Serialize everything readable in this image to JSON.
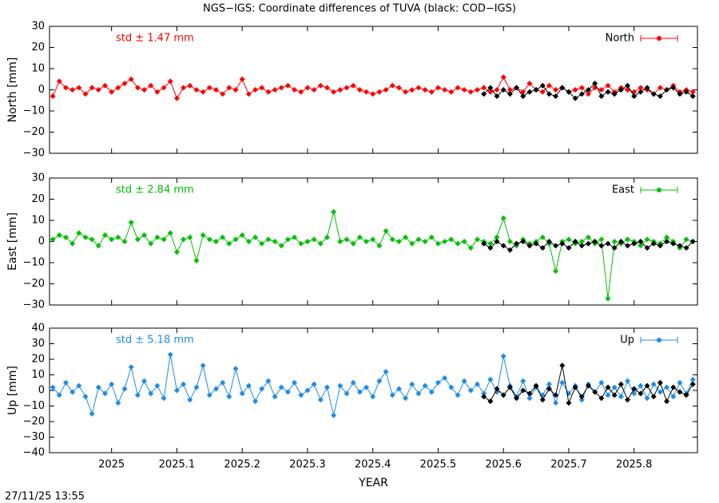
{
  "title": "NGS−IGS: Coordinate differences of TUVA (black: COD−IGS)",
  "timestamp": "27/11/25 13:55",
  "chart_data": [
    {
      "type": "line",
      "ylabel": "North [mm]",
      "annotation": "std ± 1.47 mm",
      "xlim": [
        2024.905,
        2025.897
      ],
      "ylim": [
        -30,
        30
      ],
      "yticks": [
        {
          "value": -30,
          "label": "−30"
        },
        {
          "value": -20,
          "label": "−20"
        },
        {
          "value": -10,
          "label": "−10"
        },
        0,
        10,
        20,
        30
      ],
      "legend": "top-right",
      "series": [
        {
          "name": "North",
          "color": "#ff0000",
          "x": [
            2024.91,
            2024.92,
            2024.93,
            2024.94,
            2024.95,
            2024.96,
            2024.97,
            2024.98,
            2024.99,
            2025,
            2025.01,
            2025.02,
            2025.03,
            2025.04,
            2025.05,
            2025.06,
            2025.07,
            2025.08,
            2025.09,
            2025.1,
            2025.11,
            2025.12,
            2025.13,
            2025.14,
            2025.15,
            2025.16,
            2025.17,
            2025.18,
            2025.19,
            2025.2,
            2025.21,
            2025.22,
            2025.23,
            2025.24,
            2025.25,
            2025.26,
            2025.27,
            2025.28,
            2025.29,
            2025.3,
            2025.31,
            2025.32,
            2025.33,
            2025.34,
            2025.35,
            2025.36,
            2025.37,
            2025.38,
            2025.39,
            2025.4,
            2025.41,
            2025.42,
            2025.43,
            2025.44,
            2025.45,
            2025.46,
            2025.47,
            2025.48,
            2025.49,
            2025.5,
            2025.51,
            2025.52,
            2025.53,
            2025.54,
            2025.55,
            2025.56,
            2025.57,
            2025.58,
            2025.59,
            2025.6,
            2025.61,
            2025.62,
            2025.63,
            2025.64,
            2025.65,
            2025.66,
            2025.67,
            2025.68,
            2025.69,
            2025.7,
            2025.71,
            2025.72,
            2025.73,
            2025.74,
            2025.75,
            2025.76,
            2025.77,
            2025.78,
            2025.79,
            2025.8,
            2025.81,
            2025.82,
            2025.83,
            2025.84,
            2025.85,
            2025.86,
            2025.87,
            2025.88,
            2025.89
          ],
          "values": [
            -3,
            4,
            1,
            0,
            1,
            -2,
            1,
            0,
            2,
            -1,
            1,
            3,
            5,
            1,
            0,
            2,
            -1,
            1,
            4,
            -4,
            1,
            2,
            0,
            -1,
            1,
            0,
            -2,
            1,
            0,
            5,
            -2,
            0,
            1,
            -1,
            0,
            1,
            2,
            0,
            -1,
            1,
            0,
            2,
            1,
            -1,
            0,
            1,
            2,
            0,
            -1,
            -2,
            -1,
            0,
            2,
            1,
            -1,
            0,
            1,
            0,
            -1,
            1,
            0,
            -1,
            1,
            0,
            -1,
            0,
            1,
            -1,
            0,
            6,
            0,
            1,
            -1,
            3,
            0,
            -1,
            2,
            0,
            1,
            -1,
            0,
            1,
            -2,
            1,
            0,
            2,
            -1,
            1,
            0,
            -1,
            1,
            0,
            -2,
            1,
            0,
            2,
            -1,
            0,
            -1
          ]
        },
        {
          "color": "#000000",
          "x": [
            2025.57,
            2025.58,
            2025.59,
            2025.6,
            2025.61,
            2025.62,
            2025.63,
            2025.64,
            2025.65,
            2025.66,
            2025.67,
            2025.68,
            2025.69,
            2025.7,
            2025.71,
            2025.72,
            2025.73,
            2025.74,
            2025.75,
            2025.76,
            2025.77,
            2025.78,
            2025.79,
            2025.8,
            2025.81,
            2025.82,
            2025.83,
            2025.84,
            2025.85,
            2025.86,
            2025.87,
            2025.88,
            2025.89
          ],
          "values": [
            -2,
            1,
            -3,
            0,
            -2,
            1,
            -3,
            -1,
            0,
            2,
            -2,
            -3,
            1,
            -1,
            -4,
            -2,
            0,
            3,
            -3,
            -1,
            -2,
            0,
            2,
            -3,
            -1,
            1,
            -2,
            -3,
            0,
            1,
            -2,
            -1,
            -3
          ]
        }
      ]
    },
    {
      "type": "line",
      "ylabel": "East [mm]",
      "annotation": "std ± 2.84 mm",
      "xlim": [
        2024.905,
        2025.897
      ],
      "ylim": [
        -30,
        30
      ],
      "yticks": [
        {
          "value": -30,
          "label": "−30"
        },
        {
          "value": -20,
          "label": "−20"
        },
        {
          "value": -10,
          "label": "−10"
        },
        0,
        10,
        20,
        30
      ],
      "legend": "top-right",
      "series": [
        {
          "name": "East",
          "color": "#00c000",
          "x": [
            2024.91,
            2024.92,
            2024.93,
            2024.94,
            2024.95,
            2024.96,
            2024.97,
            2024.98,
            2024.99,
            2025,
            2025.01,
            2025.02,
            2025.03,
            2025.04,
            2025.05,
            2025.06,
            2025.07,
            2025.08,
            2025.09,
            2025.1,
            2025.11,
            2025.12,
            2025.13,
            2025.14,
            2025.15,
            2025.16,
            2025.17,
            2025.18,
            2025.19,
            2025.2,
            2025.21,
            2025.22,
            2025.23,
            2025.24,
            2025.25,
            2025.26,
            2025.27,
            2025.28,
            2025.29,
            2025.3,
            2025.31,
            2025.32,
            2025.33,
            2025.34,
            2025.35,
            2025.36,
            2025.37,
            2025.38,
            2025.39,
            2025.4,
            2025.41,
            2025.42,
            2025.43,
            2025.44,
            2025.45,
            2025.46,
            2025.47,
            2025.48,
            2025.49,
            2025.5,
            2025.51,
            2025.52,
            2025.53,
            2025.54,
            2025.55,
            2025.56,
            2025.57,
            2025.58,
            2025.59,
            2025.6,
            2025.61,
            2025.62,
            2025.63,
            2025.64,
            2025.65,
            2025.66,
            2025.67,
            2025.68,
            2025.69,
            2025.7,
            2025.71,
            2025.72,
            2025.73,
            2025.74,
            2025.75,
            2025.76,
            2025.77,
            2025.78,
            2025.79,
            2025.8,
            2025.81,
            2025.82,
            2025.83,
            2025.84,
            2025.85,
            2025.86,
            2025.87,
            2025.88,
            2025.89
          ],
          "values": [
            1,
            3,
            2,
            -1,
            4,
            2,
            1,
            -2,
            3,
            1,
            2,
            0,
            9,
            1,
            3,
            -1,
            2,
            1,
            4,
            -5,
            1,
            2,
            -9,
            3,
            1,
            0,
            2,
            -1,
            1,
            3,
            0,
            2,
            -1,
            1,
            0,
            -2,
            1,
            2,
            -1,
            0,
            1,
            -1,
            2,
            14,
            0,
            1,
            -1,
            2,
            0,
            1,
            -2,
            5,
            1,
            0,
            2,
            -1,
            1,
            0,
            2,
            -1,
            0,
            1,
            -1,
            0,
            -3,
            1,
            0,
            -1,
            2,
            11,
            0,
            -2,
            1,
            -1,
            0,
            2,
            -1,
            -14,
            0,
            1,
            -1,
            0,
            2,
            -1,
            1,
            -27,
            0,
            -1,
            1,
            0,
            -2,
            1,
            0,
            -1,
            2,
            0,
            -3,
            1,
            0
          ]
        },
        {
          "color": "#000000",
          "x": [
            2025.57,
            2025.58,
            2025.59,
            2025.6,
            2025.61,
            2025.62,
            2025.63,
            2025.64,
            2025.65,
            2025.66,
            2025.67,
            2025.68,
            2025.69,
            2025.7,
            2025.71,
            2025.72,
            2025.73,
            2025.74,
            2025.75,
            2025.76,
            2025.77,
            2025.78,
            2025.79,
            2025.8,
            2025.81,
            2025.82,
            2025.83,
            2025.84,
            2025.85,
            2025.86,
            2025.87,
            2025.88,
            2025.89
          ],
          "values": [
            -1,
            -3,
            0,
            -2,
            -4,
            -1,
            0,
            -2,
            -1,
            -3,
            0,
            -2,
            -1,
            -3,
            0,
            -2,
            -1,
            0,
            -2,
            -1,
            -3,
            0,
            -2,
            -1,
            0,
            -3,
            -1,
            -2,
            0,
            -1,
            -2,
            -3,
            0
          ]
        }
      ]
    },
    {
      "type": "line",
      "ylabel": "Up [mm]",
      "annotation": "std ± 5.18 mm",
      "xlabel": "YEAR",
      "xlim": [
        2024.905,
        2025.897
      ],
      "ylim": [
        -40,
        40
      ],
      "xticks": [
        2025,
        2025.1,
        2025.2,
        2025.3,
        2025.4,
        2025.5,
        2025.6,
        2025.7,
        2025.8
      ],
      "yticks": [
        {
          "value": -40,
          "label": "−40"
        },
        {
          "value": -30,
          "label": "−30"
        },
        {
          "value": -20,
          "label": "−20"
        },
        {
          "value": -10,
          "label": "−10"
        },
        0,
        10,
        20,
        30,
        40
      ],
      "legend": "top-right",
      "series": [
        {
          "name": "Up",
          "color": "#1e8ce8",
          "x": [
            2024.91,
            2024.92,
            2024.93,
            2024.94,
            2024.95,
            2024.96,
            2024.97,
            2024.98,
            2024.99,
            2025,
            2025.01,
            2025.02,
            2025.03,
            2025.04,
            2025.05,
            2025.06,
            2025.07,
            2025.08,
            2025.09,
            2025.1,
            2025.11,
            2025.12,
            2025.13,
            2025.14,
            2025.15,
            2025.16,
            2025.17,
            2025.18,
            2025.19,
            2025.2,
            2025.21,
            2025.22,
            2025.23,
            2025.24,
            2025.25,
            2025.26,
            2025.27,
            2025.28,
            2025.29,
            2025.3,
            2025.31,
            2025.32,
            2025.33,
            2025.34,
            2025.35,
            2025.36,
            2025.37,
            2025.38,
            2025.39,
            2025.4,
            2025.41,
            2025.42,
            2025.43,
            2025.44,
            2025.45,
            2025.46,
            2025.47,
            2025.48,
            2025.49,
            2025.5,
            2025.51,
            2025.52,
            2025.53,
            2025.54,
            2025.55,
            2025.56,
            2025.57,
            2025.58,
            2025.59,
            2025.6,
            2025.61,
            2025.62,
            2025.63,
            2025.64,
            2025.65,
            2025.66,
            2025.67,
            2025.68,
            2025.69,
            2025.7,
            2025.71,
            2025.72,
            2025.73,
            2025.74,
            2025.75,
            2025.76,
            2025.77,
            2025.78,
            2025.79,
            2025.8,
            2025.81,
            2025.82,
            2025.83,
            2025.84,
            2025.85,
            2025.86,
            2025.87,
            2025.88,
            2025.89
          ],
          "values": [
            2,
            -3,
            5,
            -1,
            3,
            -4,
            -15,
            2,
            -2,
            4,
            -8,
            1,
            15,
            -3,
            6,
            -2,
            3,
            -5,
            23,
            0,
            4,
            -6,
            2,
            16,
            -3,
            1,
            5,
            -4,
            14,
            -2,
            3,
            -7,
            1,
            6,
            -4,
            2,
            -1,
            5,
            -3,
            0,
            4,
            -6,
            2,
            -16,
            3,
            -2,
            5,
            -1,
            2,
            -4,
            6,
            12,
            -3,
            1,
            -5,
            4,
            -2,
            3,
            -1,
            5,
            8,
            2,
            -3,
            6,
            0,
            4,
            -2,
            7,
            -1,
            22,
            3,
            -4,
            6,
            -5,
            2,
            -3,
            4,
            -8,
            5,
            -2,
            3,
            -6,
            4,
            -1,
            5,
            -3,
            2,
            -4,
            6,
            -2,
            3,
            -5,
            4,
            -1,
            2,
            -4,
            5,
            -2,
            7
          ]
        },
        {
          "color": "#000000",
          "x": [
            2025.57,
            2025.58,
            2025.59,
            2025.6,
            2025.61,
            2025.62,
            2025.63,
            2025.64,
            2025.65,
            2025.66,
            2025.67,
            2025.68,
            2025.69,
            2025.7,
            2025.71,
            2025.72,
            2025.73,
            2025.74,
            2025.75,
            2025.76,
            2025.77,
            2025.78,
            2025.79,
            2025.8,
            2025.81,
            2025.82,
            2025.83,
            2025.84,
            2025.85,
            2025.86,
            2025.87,
            2025.88,
            2025.89
          ],
          "values": [
            -4,
            -7,
            1,
            -3,
            2,
            -5,
            0,
            -2,
            3,
            -6,
            1,
            -3,
            16,
            -8,
            2,
            -4,
            3,
            -1,
            -5,
            2,
            -3,
            4,
            -6,
            1,
            -2,
            3,
            -4,
            5,
            -7,
            2,
            -1,
            -3,
            4
          ]
        }
      ]
    }
  ]
}
